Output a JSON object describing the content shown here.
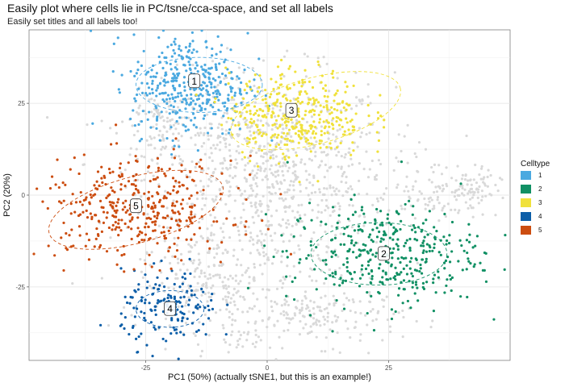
{
  "chart_data": {
    "type": "scatter",
    "title": "Easily plot where cells lie in PC/tsne/cca-space, and set all labels",
    "subtitle": "Easily set titles and all labels too!",
    "xlabel": "PC1 (50%) (actually tSNE1, but this is an example!)",
    "ylabel": "PC2 (20%)",
    "xlim": [
      -49,
      50
    ],
    "ylim": [
      -45,
      45
    ],
    "x_ticks": [
      -25,
      0,
      25
    ],
    "y_ticks": [
      -25,
      0,
      25
    ],
    "x_tick_labels": [
      "-25",
      "0",
      "25"
    ],
    "y_tick_labels": [
      "-25",
      "0",
      "25"
    ],
    "grid": true,
    "legend": {
      "title": "Celltype",
      "position": "right",
      "entries": [
        {
          "label": "1",
          "color": "#4ba9e0"
        },
        {
          "label": "2",
          "color": "#119064"
        },
        {
          "label": "3",
          "color": "#f0e13c"
        },
        {
          "label": "4",
          "color": "#0c5ea8"
        },
        {
          "label": "5",
          "color": "#cc4d10"
        }
      ]
    },
    "background_color": "#d9d9d9",
    "clusters": [
      {
        "label": "1",
        "color": "#4ba9e0",
        "center": [
          -16,
          30
        ],
        "spread": [
          6,
          7
        ],
        "ellipse": {
          "cx": -14,
          "cy": 30,
          "rx": 26,
          "ry": 15,
          "angle": 0
        }
      },
      {
        "label": "2",
        "color": "#119064",
        "center": [
          24,
          -16
        ],
        "spread": [
          10,
          7
        ],
        "ellipse": {
          "cx": 23,
          "cy": -16,
          "rx": 28,
          "ry": 17,
          "angle": 0
        }
      },
      {
        "label": "3",
        "color": "#f0e13c",
        "center": [
          6,
          22
        ],
        "spread": [
          7,
          6
        ],
        "ellipse": {
          "cx": 10,
          "cy": 23,
          "rx": 36,
          "ry": 18,
          "angle": -15
        }
      },
      {
        "label": "4",
        "color": "#0c5ea8",
        "center": [
          -20,
          -31
        ],
        "spread": [
          5,
          5
        ],
        "ellipse": {
          "cx": -20,
          "cy": -31,
          "rx": 14,
          "ry": 10,
          "angle": 0
        }
      },
      {
        "label": "5",
        "color": "#cc4d10",
        "center": [
          -27,
          -4
        ],
        "spread": [
          10,
          7
        ],
        "ellipse": {
          "cx": -27,
          "cy": -4,
          "rx": 37,
          "ry": 18,
          "angle": -15
        }
      }
    ],
    "point_labels": [
      {
        "label": "1",
        "x": -15,
        "y": 31
      },
      {
        "label": "2",
        "x": 24,
        "y": -16
      },
      {
        "label": "3",
        "x": 5,
        "y": 23
      },
      {
        "label": "4",
        "x": -20,
        "y": -31
      },
      {
        "label": "5",
        "x": -27,
        "y": -3
      }
    ]
  }
}
